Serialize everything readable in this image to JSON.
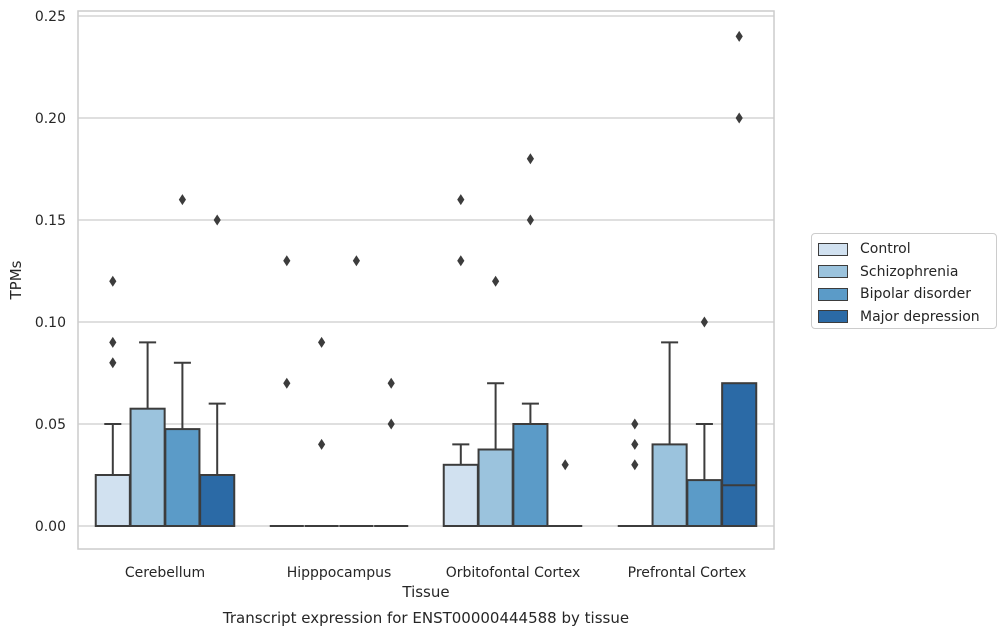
{
  "chart_data": {
    "type": "box",
    "title": "Transcript expression for ENST00000444588 by tissue",
    "xlabel": "Tissue",
    "ylabel": "TPMs",
    "ylim": [
      -0.0115,
      0.2535
    ],
    "yticks": [
      0.0,
      0.05,
      0.1,
      0.15,
      0.2,
      0.25
    ],
    "ytick_labels": [
      "0.00",
      "0.05",
      "0.10",
      "0.15",
      "0.20",
      "0.25"
    ],
    "grid": "horizontal",
    "legend_position": "right",
    "categories": [
      "Cerebellum",
      "Hipppocampus",
      "Orbitofontal Cortex",
      "Prefrontal Cortex"
    ],
    "series": [
      {
        "name": "Control",
        "color": "#d1e1f0",
        "boxes": [
          {
            "q1": 0.0,
            "median": 0.0,
            "q3": 0.025,
            "whisker_low": 0.0,
            "whisker_high": 0.05,
            "outliers": [
              0.08,
              0.09,
              0.12
            ]
          },
          {
            "q1": 0.0,
            "median": 0.0,
            "q3": 0.0,
            "whisker_low": 0.0,
            "whisker_high": 0.0,
            "outliers": [
              0.07,
              0.13
            ]
          },
          {
            "q1": 0.0,
            "median": 0.0,
            "q3": 0.03,
            "whisker_low": 0.0,
            "whisker_high": 0.04,
            "outliers": [
              0.13,
              0.16
            ]
          },
          {
            "q1": 0.0,
            "median": 0.0,
            "q3": 0.0,
            "whisker_low": 0.0,
            "whisker_high": 0.0,
            "outliers": [
              0.03,
              0.04,
              0.05
            ]
          }
        ]
      },
      {
        "name": "Schizophrenia",
        "color": "#9bc3dd",
        "boxes": [
          {
            "q1": 0.0,
            "median": 0.0,
            "q3": 0.0575,
            "whisker_low": 0.0,
            "whisker_high": 0.09,
            "outliers": []
          },
          {
            "q1": 0.0,
            "median": 0.0,
            "q3": 0.0,
            "whisker_low": 0.0,
            "whisker_high": 0.0,
            "outliers": [
              0.04,
              0.09
            ]
          },
          {
            "q1": 0.0,
            "median": 0.0,
            "q3": 0.0375,
            "whisker_low": 0.0,
            "whisker_high": 0.07,
            "outliers": [
              0.12
            ]
          },
          {
            "q1": 0.0,
            "median": 0.0,
            "q3": 0.04,
            "whisker_low": 0.0,
            "whisker_high": 0.09,
            "outliers": []
          }
        ]
      },
      {
        "name": "Bipolar disorder",
        "color": "#5b9bc8",
        "boxes": [
          {
            "q1": 0.0,
            "median": 0.0,
            "q3": 0.0475,
            "whisker_low": 0.0,
            "whisker_high": 0.08,
            "outliers": [
              0.16
            ]
          },
          {
            "q1": 0.0,
            "median": 0.0,
            "q3": 0.0,
            "whisker_low": 0.0,
            "whisker_high": 0.0,
            "outliers": [
              0.13
            ]
          },
          {
            "q1": 0.0,
            "median": 0.0,
            "q3": 0.05,
            "whisker_low": 0.0,
            "whisker_high": 0.06,
            "outliers": [
              0.15,
              0.18
            ]
          },
          {
            "q1": 0.0,
            "median": 0.0,
            "q3": 0.0225,
            "whisker_low": 0.0,
            "whisker_high": 0.05,
            "outliers": [
              0.1
            ]
          }
        ]
      },
      {
        "name": "Major depression",
        "color": "#2b6aa6",
        "boxes": [
          {
            "q1": 0.0,
            "median": 0.0,
            "q3": 0.025,
            "whisker_low": 0.0,
            "whisker_high": 0.06,
            "outliers": [
              0.15
            ]
          },
          {
            "q1": 0.0,
            "median": 0.0,
            "q3": 0.0,
            "whisker_low": 0.0,
            "whisker_high": 0.0,
            "outliers": [
              0.05,
              0.07
            ]
          },
          {
            "q1": 0.0,
            "median": 0.0,
            "q3": 0.0,
            "whisker_low": 0.0,
            "whisker_high": 0.0,
            "outliers": [
              0.03
            ]
          },
          {
            "q1": 0.0,
            "median": 0.02,
            "q3": 0.07,
            "whisker_low": 0.0,
            "whisker_high": 0.07,
            "outliers": [
              0.2,
              0.24
            ]
          }
        ]
      }
    ]
  }
}
